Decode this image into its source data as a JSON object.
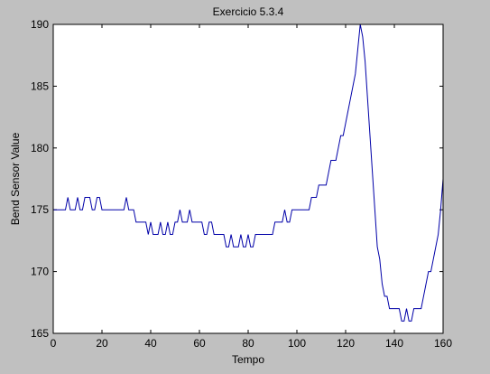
{
  "chart_data": {
    "type": "line",
    "title": "Exercicio 5.3.4",
    "xlabel": "Tempo",
    "ylabel": "Bend Sensor Value",
    "xlim": [
      0,
      160
    ],
    "ylim": [
      165,
      190
    ],
    "xticks": [
      0,
      20,
      40,
      60,
      80,
      100,
      120,
      140,
      160
    ],
    "yticks": [
      165,
      170,
      175,
      180,
      185,
      190
    ],
    "grid": false,
    "line_color": "#0000a8",
    "background_color": "#c0c0c0",
    "axes_color": "#ffffff",
    "series": [
      {
        "x": [
          0,
          1,
          2,
          3,
          4,
          5,
          6,
          7,
          8,
          9,
          10,
          11,
          12,
          13,
          14,
          15,
          16,
          17,
          18,
          19,
          20,
          21,
          22,
          23,
          24,
          25,
          26,
          27,
          28,
          29,
          30,
          31,
          32,
          33,
          34,
          35,
          36,
          37,
          38,
          39,
          40,
          41,
          42,
          43,
          44,
          45,
          46,
          47,
          48,
          49,
          50,
          51,
          52,
          53,
          54,
          55,
          56,
          57,
          58,
          59,
          60,
          61,
          62,
          63,
          64,
          65,
          66,
          67,
          68,
          69,
          70,
          71,
          72,
          73,
          74,
          75,
          76,
          77,
          78,
          79,
          80,
          81,
          82,
          83,
          84,
          85,
          86,
          87,
          88,
          89,
          90,
          91,
          92,
          93,
          94,
          95,
          96,
          97,
          98,
          99,
          100,
          101,
          102,
          103,
          104,
          105,
          106,
          107,
          108,
          109,
          110,
          111,
          112,
          113,
          114,
          115,
          116,
          117,
          118,
          119,
          120,
          121,
          122,
          123,
          124,
          125,
          126,
          127,
          128,
          129,
          130,
          131,
          132,
          133,
          134,
          135,
          136,
          137,
          138,
          139,
          140,
          141,
          142,
          143,
          144,
          145,
          146,
          147,
          148,
          149,
          150,
          151,
          152,
          153,
          154,
          155,
          156,
          157,
          158,
          159,
          160
        ],
        "y": [
          175,
          175,
          175,
          175,
          175,
          175,
          176,
          175,
          175,
          175,
          176,
          175,
          175,
          176,
          176,
          176,
          175,
          175,
          176,
          176,
          175,
          175,
          175,
          175,
          175,
          175,
          175,
          175,
          175,
          175,
          176,
          175,
          175,
          175,
          174,
          174,
          174,
          174,
          174,
          173,
          174,
          173,
          173,
          173,
          174,
          173,
          173,
          174,
          173,
          173,
          174,
          174,
          175,
          174,
          174,
          174,
          175,
          174,
          174,
          174,
          174,
          174,
          173,
          173,
          174,
          174,
          173,
          173,
          173,
          173,
          173,
          172,
          172,
          173,
          172,
          172,
          172,
          173,
          172,
          172,
          173,
          172,
          172,
          173,
          173,
          173,
          173,
          173,
          173,
          173,
          173,
          174,
          174,
          174,
          174,
          175,
          174,
          174,
          175,
          175,
          175,
          175,
          175,
          175,
          175,
          175,
          176,
          176,
          176,
          177,
          177,
          177,
          177,
          178,
          179,
          179,
          179,
          180,
          181,
          181,
          182,
          183,
          184,
          185,
          186,
          188,
          190,
          189,
          187,
          184,
          181,
          178,
          175,
          172,
          171,
          169,
          168,
          168,
          167,
          167,
          167,
          167,
          167,
          166,
          166,
          167,
          166,
          166,
          167,
          167,
          167,
          167,
          168,
          169,
          170,
          170,
          171,
          172,
          173,
          175,
          177.5
        ]
      }
    ]
  }
}
